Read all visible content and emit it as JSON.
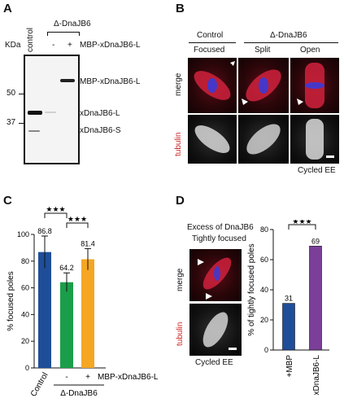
{
  "panels": {
    "a": "A",
    "b": "B",
    "c": "C",
    "d": "D"
  },
  "panel_a": {
    "kda_label": "KDa",
    "lane_control": "control",
    "group_label": "Δ-DnaJB6",
    "lane_minus": "-",
    "lane_plus": "+",
    "mbp_row_label": "MBP-xDnaJB6-L",
    "markers": [
      "50",
      "37"
    ],
    "band_labels": [
      "MBP-xDnaJB6-L",
      "xDnaJB6-L",
      "xDnaJB6-S"
    ]
  },
  "panel_b": {
    "control_header": "Control",
    "dna_header": "Δ-DnaJB6",
    "col_labels": [
      "Focused",
      "Split",
      "Open"
    ],
    "row_merge": "merge",
    "row_tubulin": "tubulin",
    "footer": "Cycled EE"
  },
  "panel_c": {
    "star_marks": [
      "★★★",
      "★★★"
    ],
    "group_label": "Δ-DnaJB6",
    "minus": "-",
    "plus": "+",
    "mbp_label": "MBP-xDnaJB6-L"
  },
  "panel_d": {
    "title_line1": "Excess of DnaJB6",
    "title_line2": "Tightly focused",
    "row_merge": "merge",
    "row_tubulin": "tubulin",
    "footer": "Cycled EE",
    "star_marks": "★★★"
  },
  "chart_data": [
    {
      "type": "bar",
      "categories": [
        "Control",
        "-",
        "+"
      ],
      "values": [
        86.8,
        64.2,
        81.4
      ],
      "errors": [
        12,
        7,
        8
      ],
      "colors": [
        "#1f4e99",
        "#1a9e49",
        "#f5a623"
      ],
      "ylabel": "% focused poles",
      "ylim": [
        0,
        100
      ],
      "yticks": [
        0,
        20,
        40,
        60,
        80,
        100
      ]
    },
    {
      "type": "bar",
      "categories": [
        "+MBP",
        "xDnaJB6-L"
      ],
      "values": [
        31,
        69
      ],
      "colors": [
        "#1f4e99",
        "#7b3f99"
      ],
      "ylabel": "% of tightly focused poles",
      "ylim": [
        0,
        80
      ],
      "yticks": [
        0,
        20,
        40,
        60,
        80
      ]
    }
  ]
}
